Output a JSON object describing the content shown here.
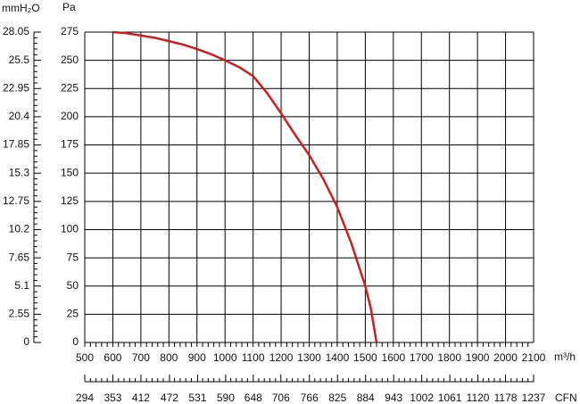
{
  "chart_data": {
    "type": "line",
    "x": [
      600,
      650,
      700,
      750,
      800,
      850,
      900,
      950,
      1000,
      1050,
      1100,
      1150,
      1200,
      1250,
      1300,
      1350,
      1400,
      1450,
      1500,
      1520,
      1540
    ],
    "values": [
      275,
      274,
      272,
      270,
      267,
      264,
      260,
      255.5,
      250,
      244,
      236,
      221,
      203,
      184,
      166,
      145,
      120,
      88,
      50,
      30,
      0
    ],
    "color": "#c8201e",
    "xlabel": "m³/h",
    "x2label": "CFN",
    "ylabel": "Pa",
    "y2label": "mmH₂O",
    "xlim": [
      500,
      2100
    ],
    "xticks": [
      500,
      600,
      700,
      800,
      900,
      1000,
      1100,
      1200,
      1300,
      1400,
      1500,
      1600,
      1700,
      1800,
      1900,
      2000,
      2100
    ],
    "x2lim": [
      294,
      1237
    ],
    "x2ticks": [
      294,
      353,
      412,
      472,
      531,
      590,
      648,
      706,
      766,
      825,
      884,
      943,
      1002,
      1061,
      1120,
      1178,
      1237
    ],
    "ylim": [
      0,
      275
    ],
    "yticks": [
      0,
      25,
      50,
      75,
      100,
      125,
      150,
      175,
      200,
      225,
      250,
      275
    ],
    "y2lim": [
      0,
      28.05
    ],
    "y2ticks": [
      0,
      2.55,
      5.1,
      7.65,
      10.2,
      12.75,
      15.3,
      17.85,
      20.4,
      22.95,
      25.5,
      28.05
    ],
    "grid": true
  }
}
